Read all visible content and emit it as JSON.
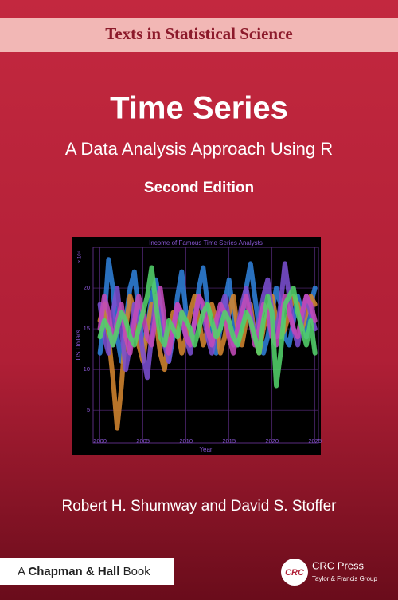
{
  "cover": {
    "series_label": "Texts in Statistical Science",
    "title": "Time Series",
    "subtitle": "A Data Analysis Approach Using R",
    "edition": "Second Edition",
    "authors": "Robert H. Shumway and David S. Stoffer",
    "imprint": {
      "prefix": "A",
      "name": "Chapman & Hall",
      "suffix": "Book"
    },
    "publisher": {
      "logo": "CRC",
      "name": "CRC Press",
      "group": "Taylor & Francis Group"
    }
  },
  "chart_data": {
    "type": "line",
    "title": "Income of Famous Time Series Analysts",
    "x_label": "Year",
    "y_label": "US Dollars",
    "y_multiplier": "× 10⁴",
    "xlim": [
      1999.2,
      2025.4
    ],
    "ylim": [
      1,
      25
    ],
    "xticks": [
      2000,
      2005,
      2010,
      2015,
      2020,
      2025
    ],
    "yticks": [
      5,
      10,
      15,
      20
    ],
    "grid": true,
    "x": [
      2000,
      2000.5,
      2001,
      2001.5,
      2002,
      2002.5,
      2003,
      2003.5,
      2004,
      2004.5,
      2005,
      2005.5,
      2006,
      2006.5,
      2007,
      2007.5,
      2008,
      2008.5,
      2009,
      2009.5,
      2010,
      2010.5,
      2011,
      2011.5,
      2012,
      2012.5,
      2013,
      2013.5,
      2014,
      2014.5,
      2015,
      2015.5,
      2016,
      2016.5,
      2017,
      2017.5,
      2018,
      2018.5,
      2019,
      2019.5,
      2020,
      2020.5,
      2021,
      2021.5,
      2022,
      2022.5,
      2023,
      2023.5,
      2024,
      2024.5,
      2025
    ],
    "series": [
      {
        "color": "#2f7fd8",
        "values": [
          12,
          16,
          23.5,
          20,
          14,
          11,
          16,
          20,
          22,
          17,
          13,
          15,
          19,
          21,
          18,
          14,
          11,
          14,
          19,
          22,
          17,
          13,
          16,
          20,
          22.5,
          18,
          14,
          12,
          15,
          18,
          21,
          17,
          13,
          16,
          20,
          23,
          19,
          15,
          12,
          14,
          17,
          20,
          18,
          14,
          13,
          16,
          19,
          17,
          14,
          18,
          20
        ]
      },
      {
        "color": "#d2842f",
        "values": [
          16,
          18,
          14,
          9,
          2.8,
          8,
          15,
          19,
          17,
          13,
          11,
          15,
          18,
          16,
          12,
          10,
          14,
          17,
          15,
          12,
          14,
          17,
          19,
          16,
          13,
          15,
          18,
          16,
          12,
          14,
          17,
          19,
          15,
          13,
          16,
          18,
          14,
          12,
          15,
          17,
          19,
          16,
          14,
          15,
          17,
          19,
          18,
          15,
          17,
          19,
          18
        ]
      },
      {
        "color": "#7a4fd0",
        "values": [
          18,
          14,
          12,
          17,
          20,
          15,
          10,
          13,
          18,
          16,
          12,
          9,
          14,
          19,
          17,
          13,
          11,
          15,
          18,
          16,
          14,
          12,
          16,
          19,
          17,
          14,
          12,
          15,
          17,
          19,
          16,
          13,
          15,
          18,
          20,
          17,
          14,
          16,
          19,
          21,
          17,
          14,
          18,
          23,
          19,
          15,
          13,
          16,
          19,
          17,
          15
        ]
      },
      {
        "color": "#c24ab8",
        "values": [
          15,
          19,
          17,
          13,
          16,
          18,
          14,
          12,
          16,
          19,
          17,
          14,
          13,
          17,
          20,
          16,
          12,
          15,
          18,
          17,
          14,
          13,
          16,
          19,
          18,
          15,
          13,
          16,
          18,
          17,
          14,
          12,
          15,
          17,
          19,
          16,
          13,
          15,
          18,
          17,
          14,
          13,
          16,
          19,
          17,
          15,
          14,
          17,
          19,
          18,
          16
        ]
      },
      {
        "color": "#52d06a",
        "values": [
          14,
          16,
          15,
          13,
          15,
          17,
          16,
          14,
          13,
          15,
          17,
          19,
          22.5,
          18,
          14,
          13,
          16,
          15,
          14,
          17,
          16,
          15,
          13,
          15,
          17,
          18,
          16,
          14,
          15,
          17,
          16,
          14,
          13,
          15,
          17,
          16,
          14,
          12,
          16,
          19,
          17,
          8,
          12,
          18,
          19,
          20,
          17,
          15,
          13,
          16,
          12
        ]
      }
    ]
  }
}
